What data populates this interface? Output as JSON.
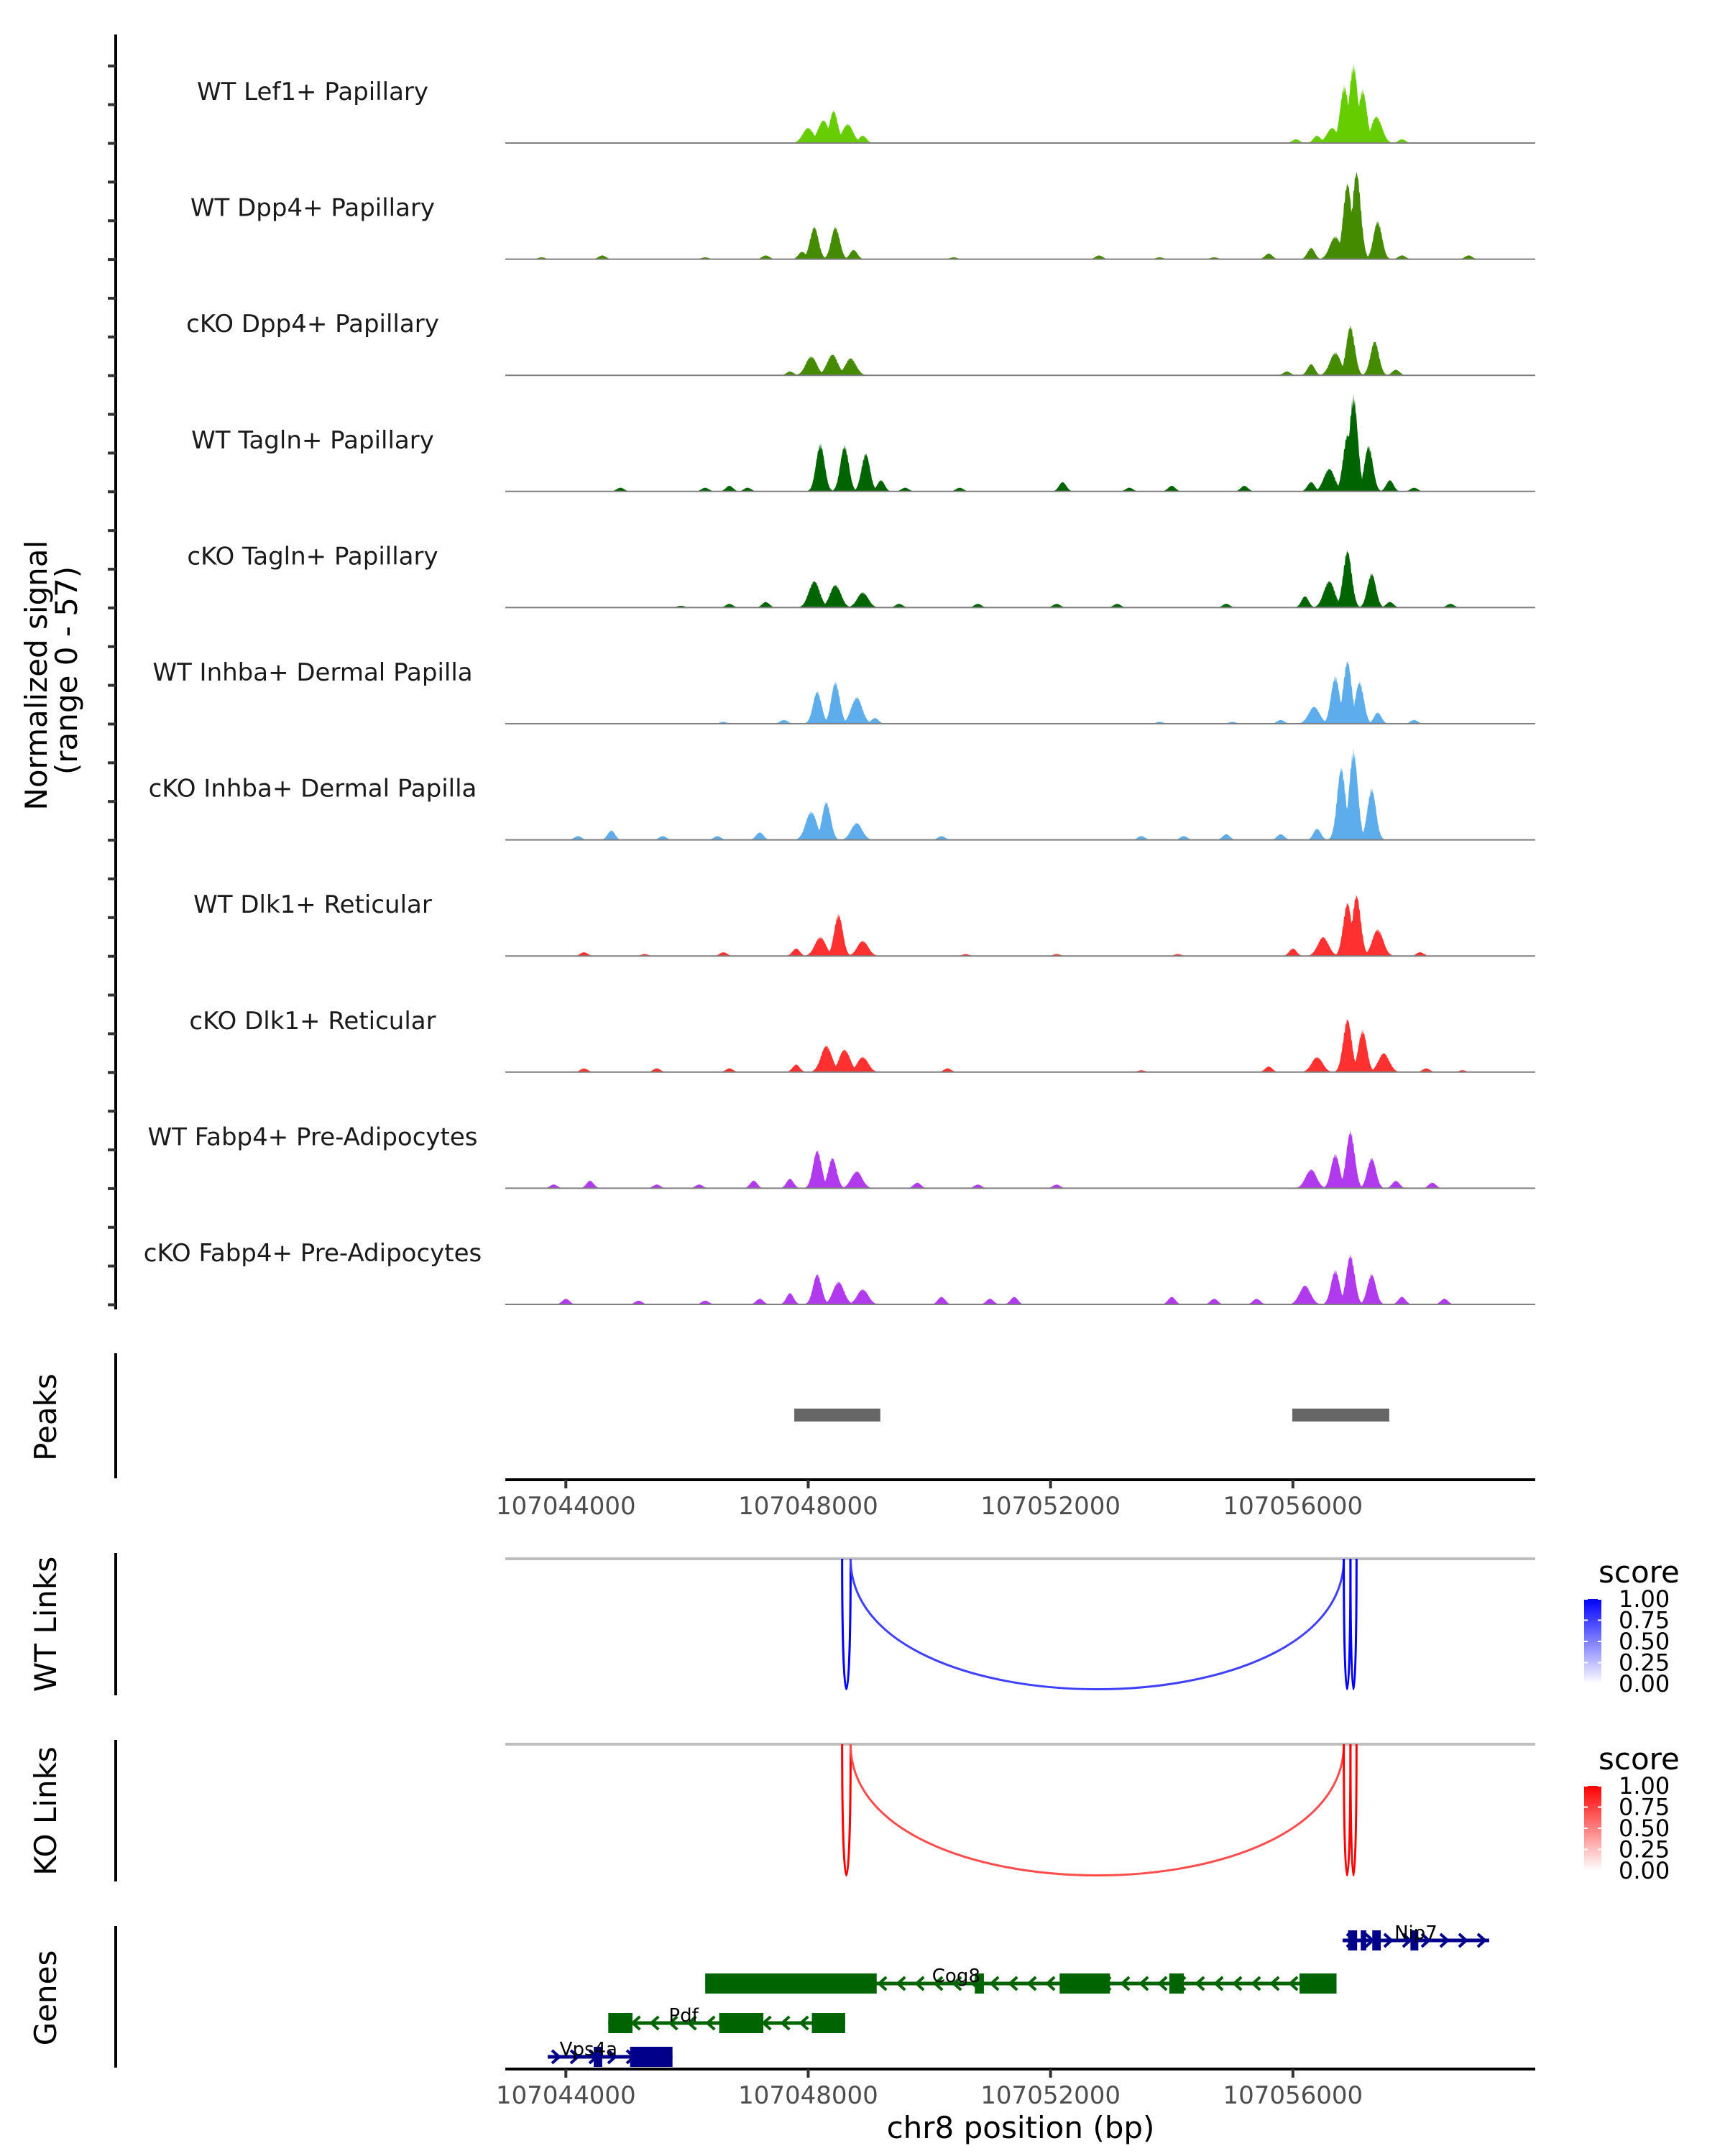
{
  "chart_data": {
    "type": "area",
    "title": "",
    "region": {
      "chrom": "chr8",
      "start": 107043000,
      "end": 107060000
    },
    "xlabel": "chr8 position (bp)",
    "x_ticks": [
      107044000,
      107048000,
      107052000,
      107056000
    ],
    "x_tick_labels": [
      "107044000",
      "107048000",
      "107052000",
      "107056000"
    ],
    "coverage": {
      "ylabel_line1": "Normalized signal",
      "ylabel_line2": "(range 0 - 57)",
      "ylim": [
        0,
        57
      ],
      "tracks": [
        {
          "name": "WT Lef1+ Papillary",
          "color": "#66CD00",
          "peaks": [
            [
              107048000,
              8
            ],
            [
              107048250,
              12
            ],
            [
              107048420,
              17
            ],
            [
              107048650,
              10
            ],
            [
              107048900,
              4
            ],
            [
              107056050,
              2
            ],
            [
              107056400,
              4
            ],
            [
              107056650,
              8
            ],
            [
              107056850,
              30
            ],
            [
              107057000,
              41
            ],
            [
              107057150,
              28
            ],
            [
              107057380,
              14
            ],
            [
              107057800,
              2
            ]
          ]
        },
        {
          "name": "WT Dpp4+ Papillary",
          "color": "#458B00",
          "peaks": [
            [
              107043600,
              1
            ],
            [
              107044600,
              2
            ],
            [
              107046300,
              1
            ],
            [
              107047300,
              2
            ],
            [
              107047900,
              4
            ],
            [
              107048100,
              17
            ],
            [
              107048450,
              17
            ],
            [
              107048750,
              5
            ],
            [
              107050400,
              1
            ],
            [
              107052800,
              2
            ],
            [
              107053800,
              1
            ],
            [
              107054700,
              1
            ],
            [
              107055600,
              3
            ],
            [
              107056300,
              6
            ],
            [
              107056700,
              12
            ],
            [
              107056900,
              40
            ],
            [
              107057050,
              46
            ],
            [
              107057400,
              20
            ],
            [
              107057800,
              2
            ],
            [
              107058900,
              2
            ]
          ]
        },
        {
          "name": "cKO Dpp4+ Papillary",
          "color": "#458B00",
          "peaks": [
            [
              107047700,
              2
            ],
            [
              107048050,
              10
            ],
            [
              107048400,
              11
            ],
            [
              107048700,
              9
            ],
            [
              107055900,
              2
            ],
            [
              107056300,
              6
            ],
            [
              107056700,
              12
            ],
            [
              107056950,
              26
            ],
            [
              107057350,
              18
            ],
            [
              107057700,
              3
            ]
          ]
        },
        {
          "name": "WT Tagln+ Papillary",
          "color": "#006400",
          "peaks": [
            [
              107044900,
              2
            ],
            [
              107046300,
              2
            ],
            [
              107046700,
              3
            ],
            [
              107047000,
              2
            ],
            [
              107048200,
              25
            ],
            [
              107048600,
              24
            ],
            [
              107048950,
              20
            ],
            [
              107049200,
              6
            ],
            [
              107049600,
              2
            ],
            [
              107050500,
              2
            ],
            [
              107052200,
              5
            ],
            [
              107053300,
              2
            ],
            [
              107054000,
              3
            ],
            [
              107055200,
              3
            ],
            [
              107056300,
              5
            ],
            [
              107056600,
              12
            ],
            [
              107056900,
              30
            ],
            [
              107057000,
              50
            ],
            [
              107057250,
              24
            ],
            [
              107057600,
              6
            ],
            [
              107058000,
              2
            ]
          ]
        },
        {
          "name": "cKO Tagln+ Papillary",
          "color": "#006400",
          "peaks": [
            [
              107045900,
              1
            ],
            [
              107046700,
              2
            ],
            [
              107047300,
              3
            ],
            [
              107048100,
              14
            ],
            [
              107048450,
              12
            ],
            [
              107048900,
              8
            ],
            [
              107049500,
              2
            ],
            [
              107050800,
              2
            ],
            [
              107052100,
              2
            ],
            [
              107053100,
              2
            ],
            [
              107054900,
              2
            ],
            [
              107056200,
              6
            ],
            [
              107056600,
              14
            ],
            [
              107056900,
              30
            ],
            [
              107057300,
              18
            ],
            [
              107057600,
              3
            ],
            [
              107058600,
              2
            ]
          ]
        },
        {
          "name": "WT Inhba+ Dermal Papilla",
          "color": "#5DADEC",
          "peaks": [
            [
              107046600,
              1
            ],
            [
              107047600,
              2
            ],
            [
              107048150,
              17
            ],
            [
              107048450,
              22
            ],
            [
              107048800,
              14
            ],
            [
              107049100,
              3
            ],
            [
              107053800,
              1
            ],
            [
              107055000,
              1
            ],
            [
              107055800,
              2
            ],
            [
              107056350,
              9
            ],
            [
              107056700,
              25
            ],
            [
              107056900,
              33
            ],
            [
              107057100,
              22
            ],
            [
              107057400,
              6
            ],
            [
              107058000,
              2
            ]
          ]
        },
        {
          "name": "cKO Inhba+ Dermal Papilla",
          "color": "#5DADEC",
          "peaks": [
            [
              107044200,
              2
            ],
            [
              107044750,
              5
            ],
            [
              107045600,
              2
            ],
            [
              107046500,
              2
            ],
            [
              107047200,
              4
            ],
            [
              107048050,
              15
            ],
            [
              107048300,
              20
            ],
            [
              107048800,
              9
            ],
            [
              107050200,
              2
            ],
            [
              107053500,
              2
            ],
            [
              107054200,
              2
            ],
            [
              107054900,
              3
            ],
            [
              107055800,
              3
            ],
            [
              107056400,
              6
            ],
            [
              107056800,
              38
            ],
            [
              107057000,
              47
            ],
            [
              107057300,
              27
            ]
          ]
        },
        {
          "name": "WT Dlk1+ Reticular",
          "color": "#FF3030",
          "peaks": [
            [
              107044300,
              2
            ],
            [
              107045300,
              1
            ],
            [
              107046600,
              2
            ],
            [
              107047800,
              4
            ],
            [
              107048200,
              10
            ],
            [
              107048500,
              22
            ],
            [
              107048900,
              8
            ],
            [
              107050600,
              1
            ],
            [
              107052100,
              1
            ],
            [
              107054100,
              1
            ],
            [
              107056000,
              4
            ],
            [
              107056500,
              10
            ],
            [
              107056900,
              28
            ],
            [
              107057050,
              32
            ],
            [
              107057400,
              14
            ],
            [
              107058100,
              2
            ]
          ]
        },
        {
          "name": "cKO Dlk1+ Reticular",
          "color": "#FF3030",
          "peaks": [
            [
              107044300,
              2
            ],
            [
              107045500,
              2
            ],
            [
              107046700,
              2
            ],
            [
              107047800,
              4
            ],
            [
              107048300,
              14
            ],
            [
              107048600,
              12
            ],
            [
              107048900,
              8
            ],
            [
              107050300,
              2
            ],
            [
              107053500,
              1
            ],
            [
              107055600,
              3
            ],
            [
              107056400,
              8
            ],
            [
              107056900,
              28
            ],
            [
              107057150,
              22
            ],
            [
              107057500,
              10
            ],
            [
              107058200,
              2
            ],
            [
              107058800,
              1
            ]
          ]
        },
        {
          "name": "WT Fabp4+ Pre-Adipocytes",
          "color": "#B23AEE",
          "peaks": [
            [
              107043800,
              2
            ],
            [
              107044400,
              4
            ],
            [
              107045500,
              2
            ],
            [
              107046200,
              2
            ],
            [
              107047100,
              4
            ],
            [
              107047700,
              5
            ],
            [
              107048150,
              20
            ],
            [
              107048400,
              16
            ],
            [
              107048800,
              9
            ],
            [
              107049800,
              3
            ],
            [
              107050800,
              2
            ],
            [
              107052100,
              2
            ],
            [
              107056300,
              10
            ],
            [
              107056700,
              18
            ],
            [
              107056950,
              30
            ],
            [
              107057300,
              16
            ],
            [
              107057700,
              4
            ],
            [
              107058300,
              3
            ]
          ]
        },
        {
          "name": "cKO Fabp4+ Pre-Adipocytes",
          "color": "#B23AEE",
          "peaks": [
            [
              107044000,
              3
            ],
            [
              107045200,
              2
            ],
            [
              107046300,
              2
            ],
            [
              107047200,
              3
            ],
            [
              107047700,
              6
            ],
            [
              107048150,
              16
            ],
            [
              107048500,
              12
            ],
            [
              107048900,
              8
            ],
            [
              107050200,
              4
            ],
            [
              107051000,
              3
            ],
            [
              107051400,
              4
            ],
            [
              107054000,
              4
            ],
            [
              107054700,
              3
            ],
            [
              107055400,
              3
            ],
            [
              107056200,
              10
            ],
            [
              107056700,
              18
            ],
            [
              107056950,
              26
            ],
            [
              107057300,
              16
            ],
            [
              107057800,
              4
            ],
            [
              107058500,
              3
            ]
          ]
        }
      ]
    },
    "peaks_track": {
      "label": "Peaks",
      "color": "#666666",
      "regions": [
        [
          107047770,
          107049190
        ],
        [
          107055990,
          107057590
        ]
      ]
    },
    "links": [
      {
        "label": "WT Links",
        "legend_title": "score",
        "color_low": "#FFFFFF",
        "color_high": "#0000FF",
        "legend_ticks": [
          "1.00",
          "0.75",
          "0.50",
          "0.25",
          "0.00"
        ],
        "arcs": [
          {
            "start": 107048560,
            "end": 107048700,
            "score": 0.75
          },
          {
            "start": 107048700,
            "end": 107056840,
            "score": 0.5
          },
          {
            "start": 107056840,
            "end": 107056950,
            "score": 0.75
          },
          {
            "start": 107056950,
            "end": 107057050,
            "score": 0.8
          }
        ]
      },
      {
        "label": "KO Links",
        "legend_title": "score",
        "color_low": "#FFFFFF",
        "color_high": "#FF0000",
        "legend_ticks": [
          "1.00",
          "0.75",
          "0.50",
          "0.25",
          "0.00"
        ],
        "arcs": [
          {
            "start": 107048560,
            "end": 107048700,
            "score": 0.8
          },
          {
            "start": 107048700,
            "end": 107056840,
            "score": 0.45
          },
          {
            "start": 107056840,
            "end": 107056950,
            "score": 0.75
          },
          {
            "start": 107056950,
            "end": 107057050,
            "score": 0.8
          }
        ]
      }
    ],
    "genes": {
      "label": "Genes",
      "items": [
        {
          "name": "Nip7",
          "strand": "+",
          "color": "#00008B",
          "row": 0,
          "start": 107056820,
          "end": 107059240,
          "exons": [
            [
              107056910,
              107057060
            ],
            [
              107057120,
              107057210
            ],
            [
              107057310,
              107057450
            ],
            [
              107057940,
              107058070
            ]
          ]
        },
        {
          "name": "Cog8",
          "strand": "-",
          "color": "#006400",
          "row": 1,
          "start": 107046300,
          "end": 107056720,
          "exons": [
            [
              107046300,
              107049130
            ],
            [
              107050750,
              107050900
            ],
            [
              107052150,
              107052980
            ],
            [
              107053960,
              107054200
            ],
            [
              107056110,
              107056720
            ]
          ]
        },
        {
          "name": "Pdf",
          "strand": "-",
          "color": "#006400",
          "row": 2,
          "start": 107044700,
          "end": 107048610,
          "exons": [
            [
              107044700,
              107045100
            ],
            [
              107046530,
              107047260
            ],
            [
              107048060,
              107048610
            ]
          ]
        },
        {
          "name": "Vps4a",
          "strand": "+",
          "color": "#00008B",
          "row": 3,
          "start": 107043700,
          "end": 107045760,
          "exons": [
            [
              107044460,
              107044600
            ],
            [
              107045060,
              107045760
            ]
          ]
        }
      ]
    }
  }
}
